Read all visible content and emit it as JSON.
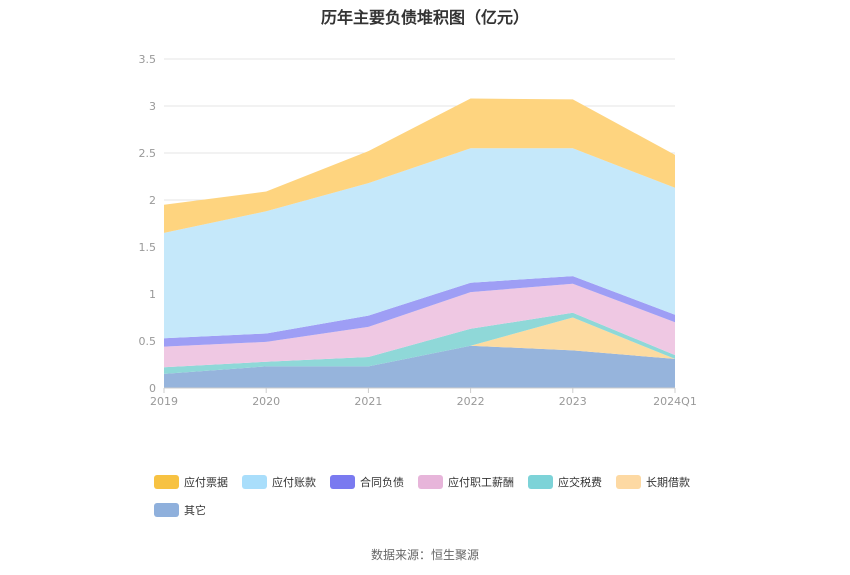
{
  "chart_data": {
    "type": "area",
    "title": "历年主要负债堆积图（亿元）",
    "stacked": true,
    "categories": [
      "2019",
      "2020",
      "2021",
      "2022",
      "2023",
      "2024Q1"
    ],
    "ylim": [
      0,
      3.5
    ],
    "yticks": [
      "0",
      "0.5",
      "1",
      "1.5",
      "2",
      "2.5",
      "3",
      "3.5"
    ],
    "grid": true,
    "legend_position": "bottom",
    "series": [
      {
        "name": "其它",
        "color": "#96b4dc",
        "values": [
          0.15,
          0.23,
          0.23,
          0.45,
          0.4,
          0.31
        ]
      },
      {
        "name": "长期借款",
        "color": "#fddba0",
        "values": [
          0,
          0,
          0,
          0,
          0.35,
          0
        ]
      },
      {
        "name": "应交税费",
        "color": "#8fd8d8",
        "values": [
          0.07,
          0.05,
          0.1,
          0.18,
          0.05,
          0.04
        ]
      },
      {
        "name": "应付职工薪酬",
        "color": "#efc8e3",
        "values": [
          0.22,
          0.21,
          0.32,
          0.39,
          0.31,
          0.35
        ]
      },
      {
        "name": "合同负债",
        "color": "#9e9ef5",
        "values": [
          0.09,
          0.09,
          0.12,
          0.1,
          0.08,
          0.08
        ]
      },
      {
        "name": "应付账款",
        "color": "#c5e8fa",
        "values": [
          1.12,
          1.3,
          1.41,
          1.43,
          1.36,
          1.35
        ]
      },
      {
        "name": "应付票据",
        "color": "#fed47f",
        "values": [
          0.3,
          0.21,
          0.34,
          0.53,
          0.52,
          0.35
        ]
      }
    ],
    "legend": [
      {
        "name": "应付票据",
        "color": "#f7c242"
      },
      {
        "name": "应付账款",
        "color": "#a9defb"
      },
      {
        "name": "合同负债",
        "color": "#7a7af0"
      },
      {
        "name": "应付职工薪酬",
        "color": "#e7b5da"
      },
      {
        "name": "应交税费",
        "color": "#7dd3d8"
      },
      {
        "name": "长期借款",
        "color": "#fdd9a3"
      },
      {
        "name": "其它",
        "color": "#8fb0dc"
      }
    ]
  },
  "source_text": "数据来源：恒生聚源"
}
